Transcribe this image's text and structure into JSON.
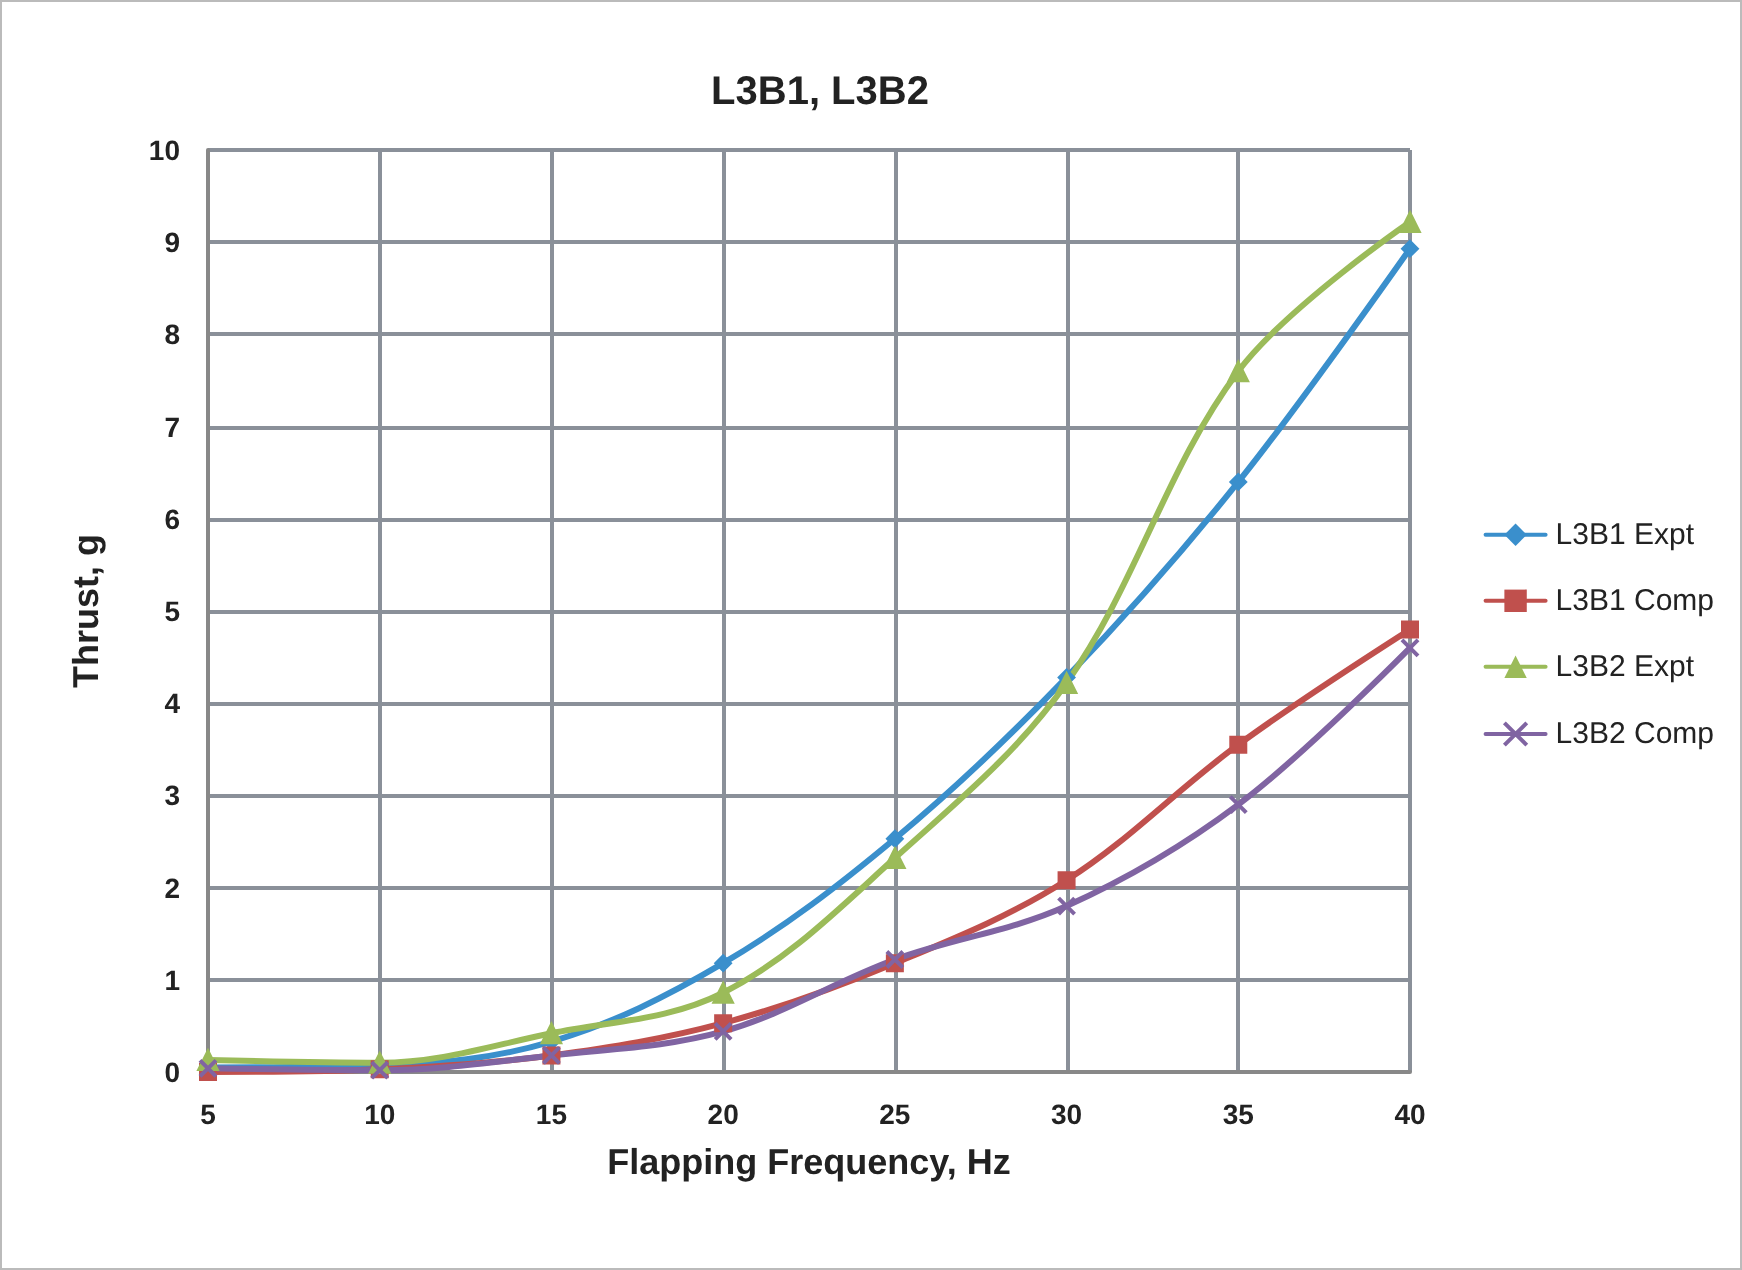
{
  "chart_data": {
    "type": "line",
    "title": "L3B1, L3B2",
    "xlabel": "Flapping Frequency, Hz",
    "ylabel": "Thrust, g",
    "x": [
      5,
      10,
      15,
      20,
      25,
      30,
      35,
      40
    ],
    "series": [
      {
        "name": "L3B1 Expt",
        "color": "#3a8fcc",
        "marker": "diamond",
        "values": [
          0.05,
          0.07,
          0.33,
          1.18,
          2.53,
          4.28,
          6.4,
          8.93
        ]
      },
      {
        "name": "L3B1 Comp",
        "color": "#c0504d",
        "marker": "square",
        "values": [
          0.0,
          0.03,
          0.18,
          0.53,
          1.18,
          2.08,
          3.55,
          4.8
        ]
      },
      {
        "name": "L3B2 Expt",
        "color": "#9bbb59",
        "marker": "triangle",
        "values": [
          0.13,
          0.1,
          0.42,
          0.86,
          2.32,
          4.22,
          7.6,
          9.22
        ]
      },
      {
        "name": "L3B2 Comp",
        "color": "#8064a2",
        "marker": "cross",
        "values": [
          0.04,
          0.02,
          0.18,
          0.44,
          1.22,
          1.8,
          2.9,
          4.6
        ]
      }
    ],
    "xlim": [
      5,
      40
    ],
    "xticks": [
      5,
      10,
      15,
      20,
      25,
      30,
      35,
      40
    ],
    "ylim": [
      0,
      10
    ],
    "yticks": [
      0,
      1,
      2,
      3,
      4,
      5,
      6,
      7,
      8,
      9,
      10
    ],
    "grid": true,
    "legend": "right",
    "line_style": "solid"
  }
}
